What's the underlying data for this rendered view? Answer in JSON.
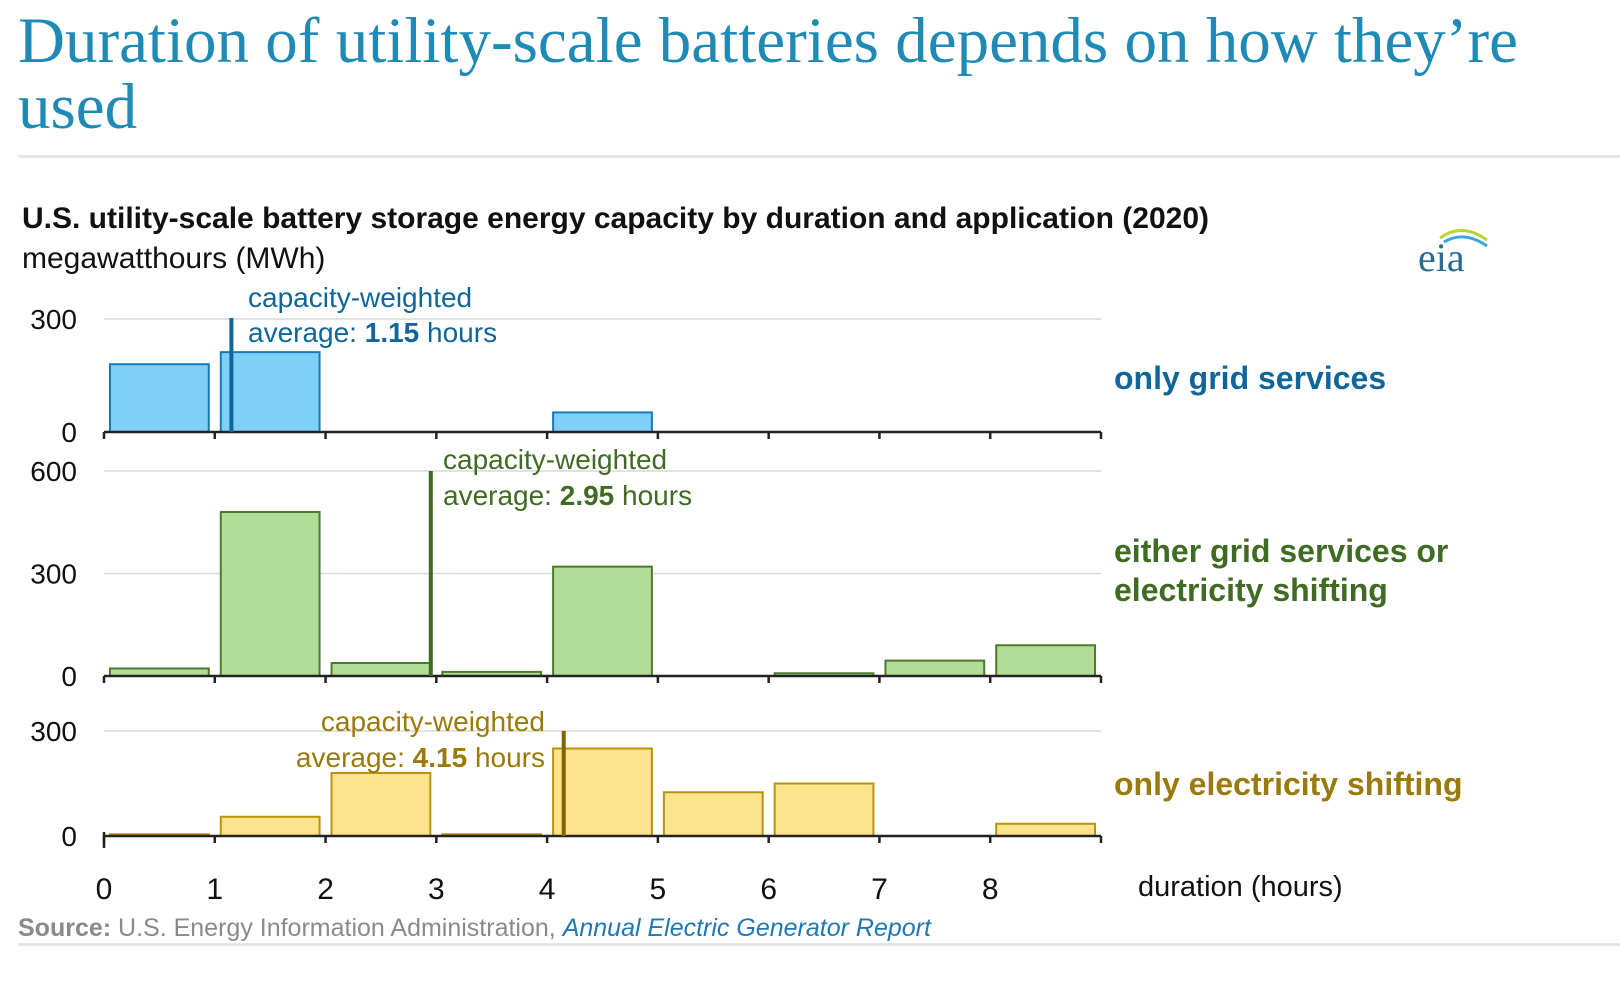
{
  "page_title": "Duration of utility-scale batteries depends on how they’re used",
  "colors": {
    "title": "#1f8ab5",
    "grid_fill": "#7fd0f7",
    "grid_stroke": "#1779b8",
    "grid_dark": "#10669a",
    "either_fill": "#b2dc97",
    "either_stroke": "#4e7a2f",
    "either_dark": "#3f6b23",
    "shift_fill": "#fce38c",
    "shift_stroke": "#b8930b",
    "shift_dark": "#7f6500",
    "shift_text": "#9a7a0a"
  },
  "logo_text": "eia",
  "chart_data": {
    "type": "bar",
    "title": "U.S. utility-scale battery storage energy capacity by duration and application (2020)",
    "subtitle": "megawatthours (MWh)",
    "xlabel": "duration (hours)",
    "xlim": [
      0,
      9
    ],
    "x_ticks": [
      "0",
      "1",
      "2",
      "3",
      "4",
      "5",
      "6",
      "7",
      "8",
      "9"
    ],
    "bins": [
      [
        0,
        1
      ],
      [
        1,
        2
      ],
      [
        2,
        3
      ],
      [
        3,
        4
      ],
      [
        4,
        5
      ],
      [
        5,
        6
      ],
      [
        6,
        7
      ],
      [
        7,
        8
      ],
      [
        8,
        9
      ]
    ],
    "panels": [
      {
        "name": "only grid services",
        "ylim": [
          0,
          300
        ],
        "y_ticks": [
          "0",
          "300"
        ],
        "values": [
          180,
          212,
          0,
          0,
          52,
          0,
          0,
          0,
          0
        ],
        "average": 1.15,
        "average_label_line1": "capacity-weighted",
        "average_label_prefix": "average: ",
        "average_label_value": "1.15",
        "average_label_suffix": " hours"
      },
      {
        "name": "either grid services or electricity shifting",
        "name_line1": "either grid services or",
        "name_line2": "electricity shifting",
        "ylim": [
          0,
          600
        ],
        "y_ticks": [
          "0",
          "300",
          "600"
        ],
        "values": [
          22,
          480,
          38,
          12,
          320,
          0,
          8,
          45,
          90
        ],
        "average": 2.95,
        "average_label_line1": "capacity-weighted",
        "average_label_prefix": "average: ",
        "average_label_value": "2.95",
        "average_label_suffix": " hours"
      },
      {
        "name": "only electricity shifting",
        "ylim": [
          0,
          300
        ],
        "y_ticks": [
          "0",
          "300"
        ],
        "values": [
          5,
          55,
          180,
          5,
          250,
          125,
          150,
          0,
          35
        ],
        "average": 4.15,
        "average_label_line1": "capacity-weighted",
        "average_label_prefix": "average: ",
        "average_label_value": "4.15",
        "average_label_suffix": " hours"
      }
    ],
    "source_label": "Source:",
    "source_text": " U.S. Energy Information Administration, ",
    "source_link": "Annual Electric Generator Report",
    "grid": true
  }
}
